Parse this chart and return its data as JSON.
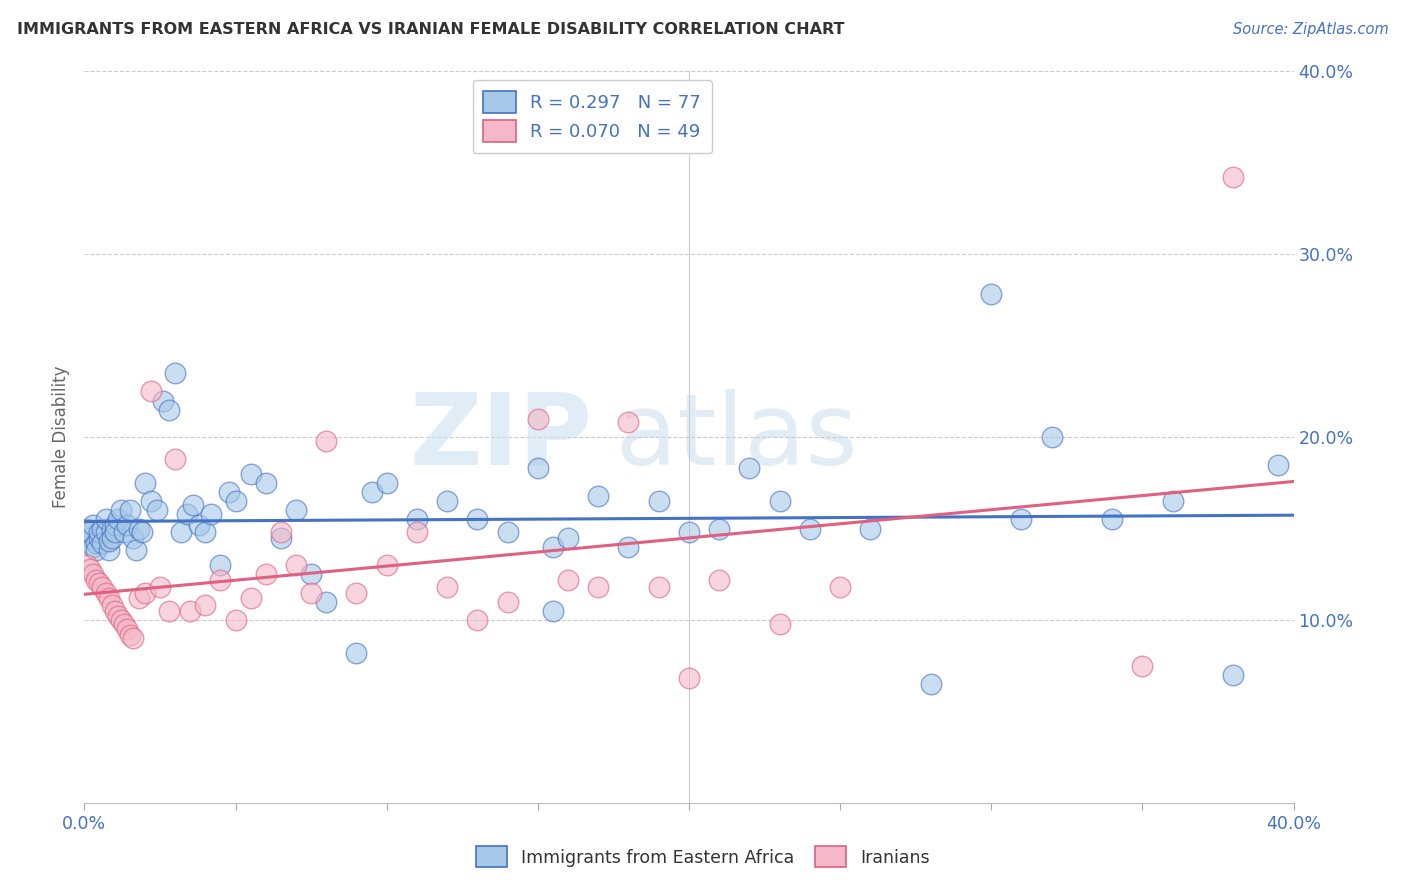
{
  "title": "IMMIGRANTS FROM EASTERN AFRICA VS IRANIAN FEMALE DISABILITY CORRELATION CHART",
  "source": "Source: ZipAtlas.com",
  "ylabel": "Female Disability",
  "xlim": [
    0.0,
    0.4
  ],
  "ylim": [
    0.0,
    0.4
  ],
  "yticks": [
    0.1,
    0.2,
    0.3,
    0.4
  ],
  "ytick_labels": [
    "10.0%",
    "20.0%",
    "30.0%",
    "40.0%"
  ],
  "xticks": [
    0.0,
    0.05,
    0.1,
    0.15,
    0.2,
    0.25,
    0.3,
    0.35,
    0.4
  ],
  "series1_color": "#a8c8e8",
  "series2_color": "#f4b8c8",
  "series1_label": "Immigrants from Eastern Africa",
  "series2_label": "Iranians",
  "series1_R": "0.297",
  "series1_N": "77",
  "series2_R": "0.070",
  "series2_N": "49",
  "series1_line_color": "#4472c4",
  "series2_line_color": "#e06080",
  "watermark_zip": "ZIP",
  "watermark_atlas": "atlas",
  "background_color": "#ffffff",
  "series1_x": [
    0.001,
    0.002,
    0.002,
    0.003,
    0.003,
    0.004,
    0.004,
    0.005,
    0.005,
    0.006,
    0.006,
    0.007,
    0.007,
    0.008,
    0.008,
    0.009,
    0.009,
    0.01,
    0.01,
    0.011,
    0.012,
    0.013,
    0.014,
    0.015,
    0.016,
    0.017,
    0.018,
    0.019,
    0.02,
    0.022,
    0.024,
    0.026,
    0.028,
    0.03,
    0.032,
    0.034,
    0.036,
    0.038,
    0.04,
    0.042,
    0.045,
    0.048,
    0.05,
    0.055,
    0.06,
    0.065,
    0.07,
    0.075,
    0.08,
    0.09,
    0.095,
    0.1,
    0.11,
    0.12,
    0.13,
    0.14,
    0.15,
    0.155,
    0.16,
    0.17,
    0.18,
    0.19,
    0.2,
    0.21,
    0.22,
    0.23,
    0.24,
    0.26,
    0.28,
    0.3,
    0.32,
    0.34,
    0.36,
    0.38,
    0.395,
    0.31,
    0.155
  ],
  "series1_y": [
    0.15,
    0.145,
    0.148,
    0.152,
    0.14,
    0.142,
    0.138,
    0.145,
    0.148,
    0.15,
    0.142,
    0.148,
    0.155,
    0.138,
    0.143,
    0.15,
    0.145,
    0.152,
    0.148,
    0.155,
    0.16,
    0.148,
    0.152,
    0.16,
    0.145,
    0.138,
    0.15,
    0.148,
    0.175,
    0.165,
    0.16,
    0.22,
    0.215,
    0.235,
    0.148,
    0.158,
    0.163,
    0.152,
    0.148,
    0.158,
    0.13,
    0.17,
    0.165,
    0.18,
    0.175,
    0.145,
    0.16,
    0.125,
    0.11,
    0.082,
    0.17,
    0.175,
    0.155,
    0.165,
    0.155,
    0.148,
    0.183,
    0.14,
    0.145,
    0.168,
    0.14,
    0.165,
    0.148,
    0.15,
    0.183,
    0.165,
    0.15,
    0.15,
    0.065,
    0.278,
    0.2,
    0.155,
    0.165,
    0.07,
    0.185,
    0.155,
    0.105
  ],
  "series2_x": [
    0.001,
    0.002,
    0.003,
    0.004,
    0.005,
    0.006,
    0.007,
    0.008,
    0.009,
    0.01,
    0.011,
    0.012,
    0.013,
    0.014,
    0.015,
    0.016,
    0.018,
    0.02,
    0.022,
    0.025,
    0.028,
    0.03,
    0.035,
    0.04,
    0.045,
    0.05,
    0.055,
    0.06,
    0.065,
    0.07,
    0.075,
    0.08,
    0.09,
    0.1,
    0.11,
    0.12,
    0.13,
    0.14,
    0.15,
    0.16,
    0.17,
    0.18,
    0.19,
    0.2,
    0.21,
    0.23,
    0.25,
    0.35,
    0.38
  ],
  "series2_y": [
    0.13,
    0.128,
    0.125,
    0.122,
    0.12,
    0.118,
    0.115,
    0.112,
    0.108,
    0.105,
    0.102,
    0.1,
    0.098,
    0.095,
    0.092,
    0.09,
    0.112,
    0.115,
    0.225,
    0.118,
    0.105,
    0.188,
    0.105,
    0.108,
    0.122,
    0.1,
    0.112,
    0.125,
    0.148,
    0.13,
    0.115,
    0.198,
    0.115,
    0.13,
    0.148,
    0.118,
    0.1,
    0.11,
    0.21,
    0.122,
    0.118,
    0.208,
    0.118,
    0.068,
    0.122,
    0.098,
    0.118,
    0.075,
    0.342
  ]
}
